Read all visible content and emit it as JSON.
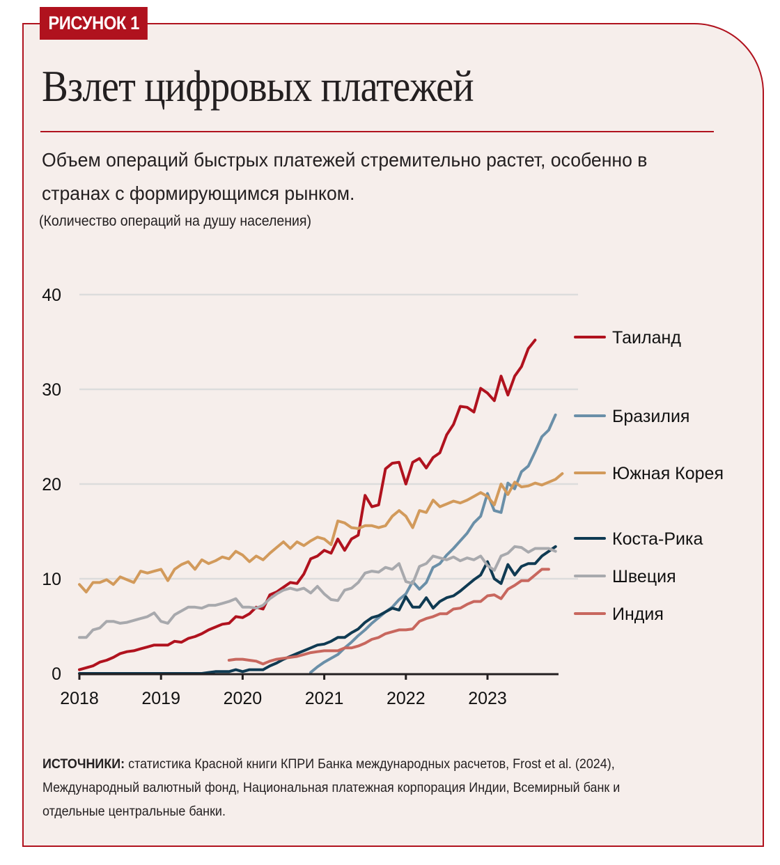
{
  "figure": {
    "badge": "РИСУНОК 1",
    "title": "Взлет цифровых платежей",
    "subtitle": "Объем операций быстрых платежей стремительно растет, особенно в странах с формирующимся рынком.",
    "unit_note": "(Количество операций на душу населения)",
    "sources_label": "ИСТОЧНИКИ:",
    "sources_text": " статистика Красной книги КПРИ Банка международных расчетов, Frost et al. (2024), Международный валютный фонд, Национальная платежная корпорация Индии, Всемирный банк и отдельные центральные банки.",
    "accent_color": "#b0121e",
    "background_color": "#f6eeeb"
  },
  "chart_data": {
    "type": "line",
    "title": "Взлет цифровых платежей",
    "xlabel": "",
    "ylabel": "Количество операций на душу населения",
    "xlim": [
      2018.0,
      2023.87
    ],
    "ylim": [
      0,
      40
    ],
    "x_ticks": [
      "2018",
      "2019",
      "2020",
      "2021",
      "2022",
      "2023"
    ],
    "x_tick_values": [
      2018,
      2019,
      2020,
      2021,
      2022,
      2023
    ],
    "y_ticks": [
      "0",
      "10",
      "20",
      "30",
      "40"
    ],
    "y_tick_values": [
      0,
      10,
      20,
      30,
      40
    ],
    "grid": "horizontal",
    "legend_placement": "right",
    "series": [
      {
        "name": "Таиланд",
        "color": "#b0121e",
        "x_start": 2018.0,
        "step_months": 1,
        "values": [
          0.4,
          0.6,
          0.8,
          1.2,
          1.4,
          1.7,
          2.1,
          2.3,
          2.4,
          2.6,
          2.8,
          3.0,
          3.0,
          3.0,
          3.4,
          3.3,
          3.7,
          3.9,
          4.2,
          4.6,
          4.9,
          5.2,
          5.3,
          6.0,
          5.9,
          6.3,
          7.0,
          6.8,
          8.3,
          8.6,
          9.1,
          9.6,
          9.5,
          10.5,
          12.1,
          12.4,
          13.0,
          12.7,
          14.2,
          13.0,
          14.2,
          14.6,
          18.8,
          17.6,
          17.8,
          21.6,
          22.2,
          22.3,
          20.0,
          22.3,
          22.7,
          21.7,
          22.8,
          23.3,
          25.2,
          26.3,
          28.2,
          28.1,
          27.6,
          30.1,
          29.6,
          28.8,
          31.4,
          29.4,
          31.4,
          32.4,
          34.3,
          35.2
        ]
      },
      {
        "name": "Бразилия",
        "color": "#6a8fa8",
        "x_start": 2020.833,
        "step_months": 1,
        "values": [
          0.1,
          0.7,
          1.2,
          1.6,
          2.0,
          2.7,
          3.3,
          4.0,
          4.6,
          5.3,
          5.9,
          6.5,
          7.0,
          7.8,
          8.4,
          9.7,
          8.9,
          9.6,
          11.2,
          11.6,
          12.5,
          13.2,
          14.0,
          14.8,
          15.9,
          16.6,
          19.0,
          17.2,
          17.0,
          20.1,
          19.5,
          21.3,
          21.9,
          23.4,
          25.0,
          25.7,
          27.3
        ]
      },
      {
        "name": "Южная Корея",
        "color": "#d29a5b",
        "x_start": 2018.0,
        "step_months": 1,
        "values": [
          9.4,
          8.6,
          9.6,
          9.6,
          9.9,
          9.4,
          10.2,
          9.9,
          9.6,
          10.8,
          10.6,
          10.8,
          11.0,
          9.8,
          11.0,
          11.5,
          11.8,
          11.0,
          12.0,
          11.6,
          11.9,
          12.3,
          12.1,
          12.9,
          12.5,
          11.8,
          12.4,
          12.0,
          12.7,
          13.3,
          13.9,
          13.2,
          13.9,
          13.5,
          14.0,
          14.4,
          14.2,
          13.6,
          16.1,
          15.9,
          15.4,
          15.3,
          15.6,
          15.6,
          15.4,
          15.6,
          16.6,
          17.2,
          16.6,
          15.4,
          17.2,
          17.0,
          18.3,
          17.6,
          17.9,
          18.2,
          18.0,
          18.3,
          18.7,
          19.1,
          18.7,
          17.8,
          20.0,
          18.9,
          20.2,
          19.7,
          19.8,
          20.1,
          19.9,
          20.2,
          20.5,
          21.1
        ]
      },
      {
        "name": "Коста-Рика",
        "color": "#0f3a52",
        "x_start": 2018.0,
        "step_months": 1,
        "values": [
          0,
          0,
          0,
          0,
          0,
          0,
          0,
          0,
          0,
          0,
          0,
          0,
          0,
          0,
          0,
          0,
          0,
          0,
          0,
          0.1,
          0.2,
          0.2,
          0.2,
          0.4,
          0.2,
          0.4,
          0.4,
          0.4,
          0.8,
          1.1,
          1.5,
          1.8,
          2.1,
          2.4,
          2.7,
          3.0,
          3.1,
          3.4,
          3.8,
          3.8,
          4.3,
          4.7,
          5.4,
          5.9,
          6.1,
          6.5,
          6.9,
          6.7,
          8.1,
          7.0,
          7.0,
          8.0,
          6.9,
          7.6,
          8.0,
          8.2,
          8.7,
          9.3,
          9.9,
          10.4,
          11.8,
          10.0,
          9.5,
          11.5,
          10.4,
          11.3,
          11.6,
          11.6,
          12.4,
          12.9,
          13.4
        ]
      },
      {
        "name": "Швеция",
        "color": "#a8a9ad",
        "x_start": 2018.0,
        "step_months": 1,
        "values": [
          3.8,
          3.8,
          4.6,
          4.8,
          5.5,
          5.5,
          5.3,
          5.4,
          5.6,
          5.8,
          6.0,
          6.4,
          5.5,
          5.3,
          6.2,
          6.6,
          7.0,
          7.0,
          6.9,
          7.2,
          7.2,
          7.4,
          7.6,
          7.9,
          7.0,
          7.0,
          6.9,
          7.2,
          7.9,
          8.4,
          8.8,
          9.0,
          8.8,
          9.0,
          8.5,
          9.2,
          8.4,
          7.8,
          7.7,
          8.8,
          9.0,
          9.6,
          10.6,
          10.8,
          10.7,
          11.2,
          11.0,
          11.6,
          9.7,
          9.5,
          11.3,
          11.6,
          12.4,
          12.2,
          12.0,
          12.3,
          11.9,
          12.2,
          12.0,
          12.4,
          11.4,
          10.9,
          12.4,
          12.7,
          13.4,
          13.3,
          12.8,
          13.2,
          13.2,
          13.2,
          12.9
        ]
      },
      {
        "name": "Индия",
        "color": "#c8675e",
        "x_start": 2019.833,
        "step_months": 1,
        "values": [
          1.4,
          1.5,
          1.5,
          1.4,
          1.3,
          1.0,
          1.3,
          1.5,
          1.6,
          1.7,
          1.8,
          2.0,
          2.2,
          2.3,
          2.4,
          2.4,
          2.4,
          2.7,
          2.7,
          2.9,
          3.2,
          3.6,
          3.8,
          4.2,
          4.4,
          4.6,
          4.6,
          4.7,
          5.5,
          5.8,
          6.0,
          6.3,
          6.3,
          6.8,
          6.9,
          7.3,
          7.6,
          7.6,
          8.2,
          8.3,
          7.9,
          8.9,
          9.3,
          9.8,
          9.8,
          10.4,
          11.0,
          11.0
        ]
      }
    ],
    "legend": [
      {
        "name": "Таиланд",
        "value_anchor": 35.2
      },
      {
        "name": "Бразилия",
        "value_anchor": 27.0
      },
      {
        "name": "Южная Корея",
        "value_anchor": 21.1
      },
      {
        "name": "Коста-Рика",
        "value_anchor": 14.1
      },
      {
        "name": "Швеция",
        "value_anchor": 10.2
      },
      {
        "name": "Индия",
        "value_anchor": 6.2
      }
    ]
  }
}
